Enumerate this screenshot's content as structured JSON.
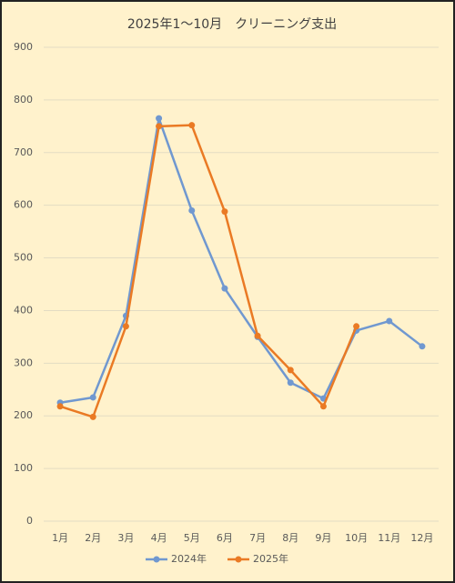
{
  "chart_data": {
    "type": "line",
    "title": "2025年1～10月　クリーニング支出",
    "categories": [
      "1月",
      "2月",
      "3月",
      "4月",
      "5月",
      "6月",
      "7月",
      "8月",
      "9月",
      "10月",
      "11月",
      "12月"
    ],
    "series": [
      {
        "name": "2024年",
        "color": "#7098d0",
        "values": [
          225,
          235,
          390,
          765,
          590,
          442,
          350,
          263,
          233,
          362,
          380,
          332
        ]
      },
      {
        "name": "2025年",
        "color": "#ea7a24",
        "values": [
          218,
          198,
          370,
          750,
          752,
          588,
          352,
          287,
          218,
          370,
          null,
          null
        ]
      }
    ],
    "ylim": [
      0,
      900
    ],
    "yticks": [
      0,
      100,
      200,
      300,
      400,
      500,
      600,
      700,
      800,
      900
    ],
    "grid": true,
    "legend": "bottom"
  }
}
